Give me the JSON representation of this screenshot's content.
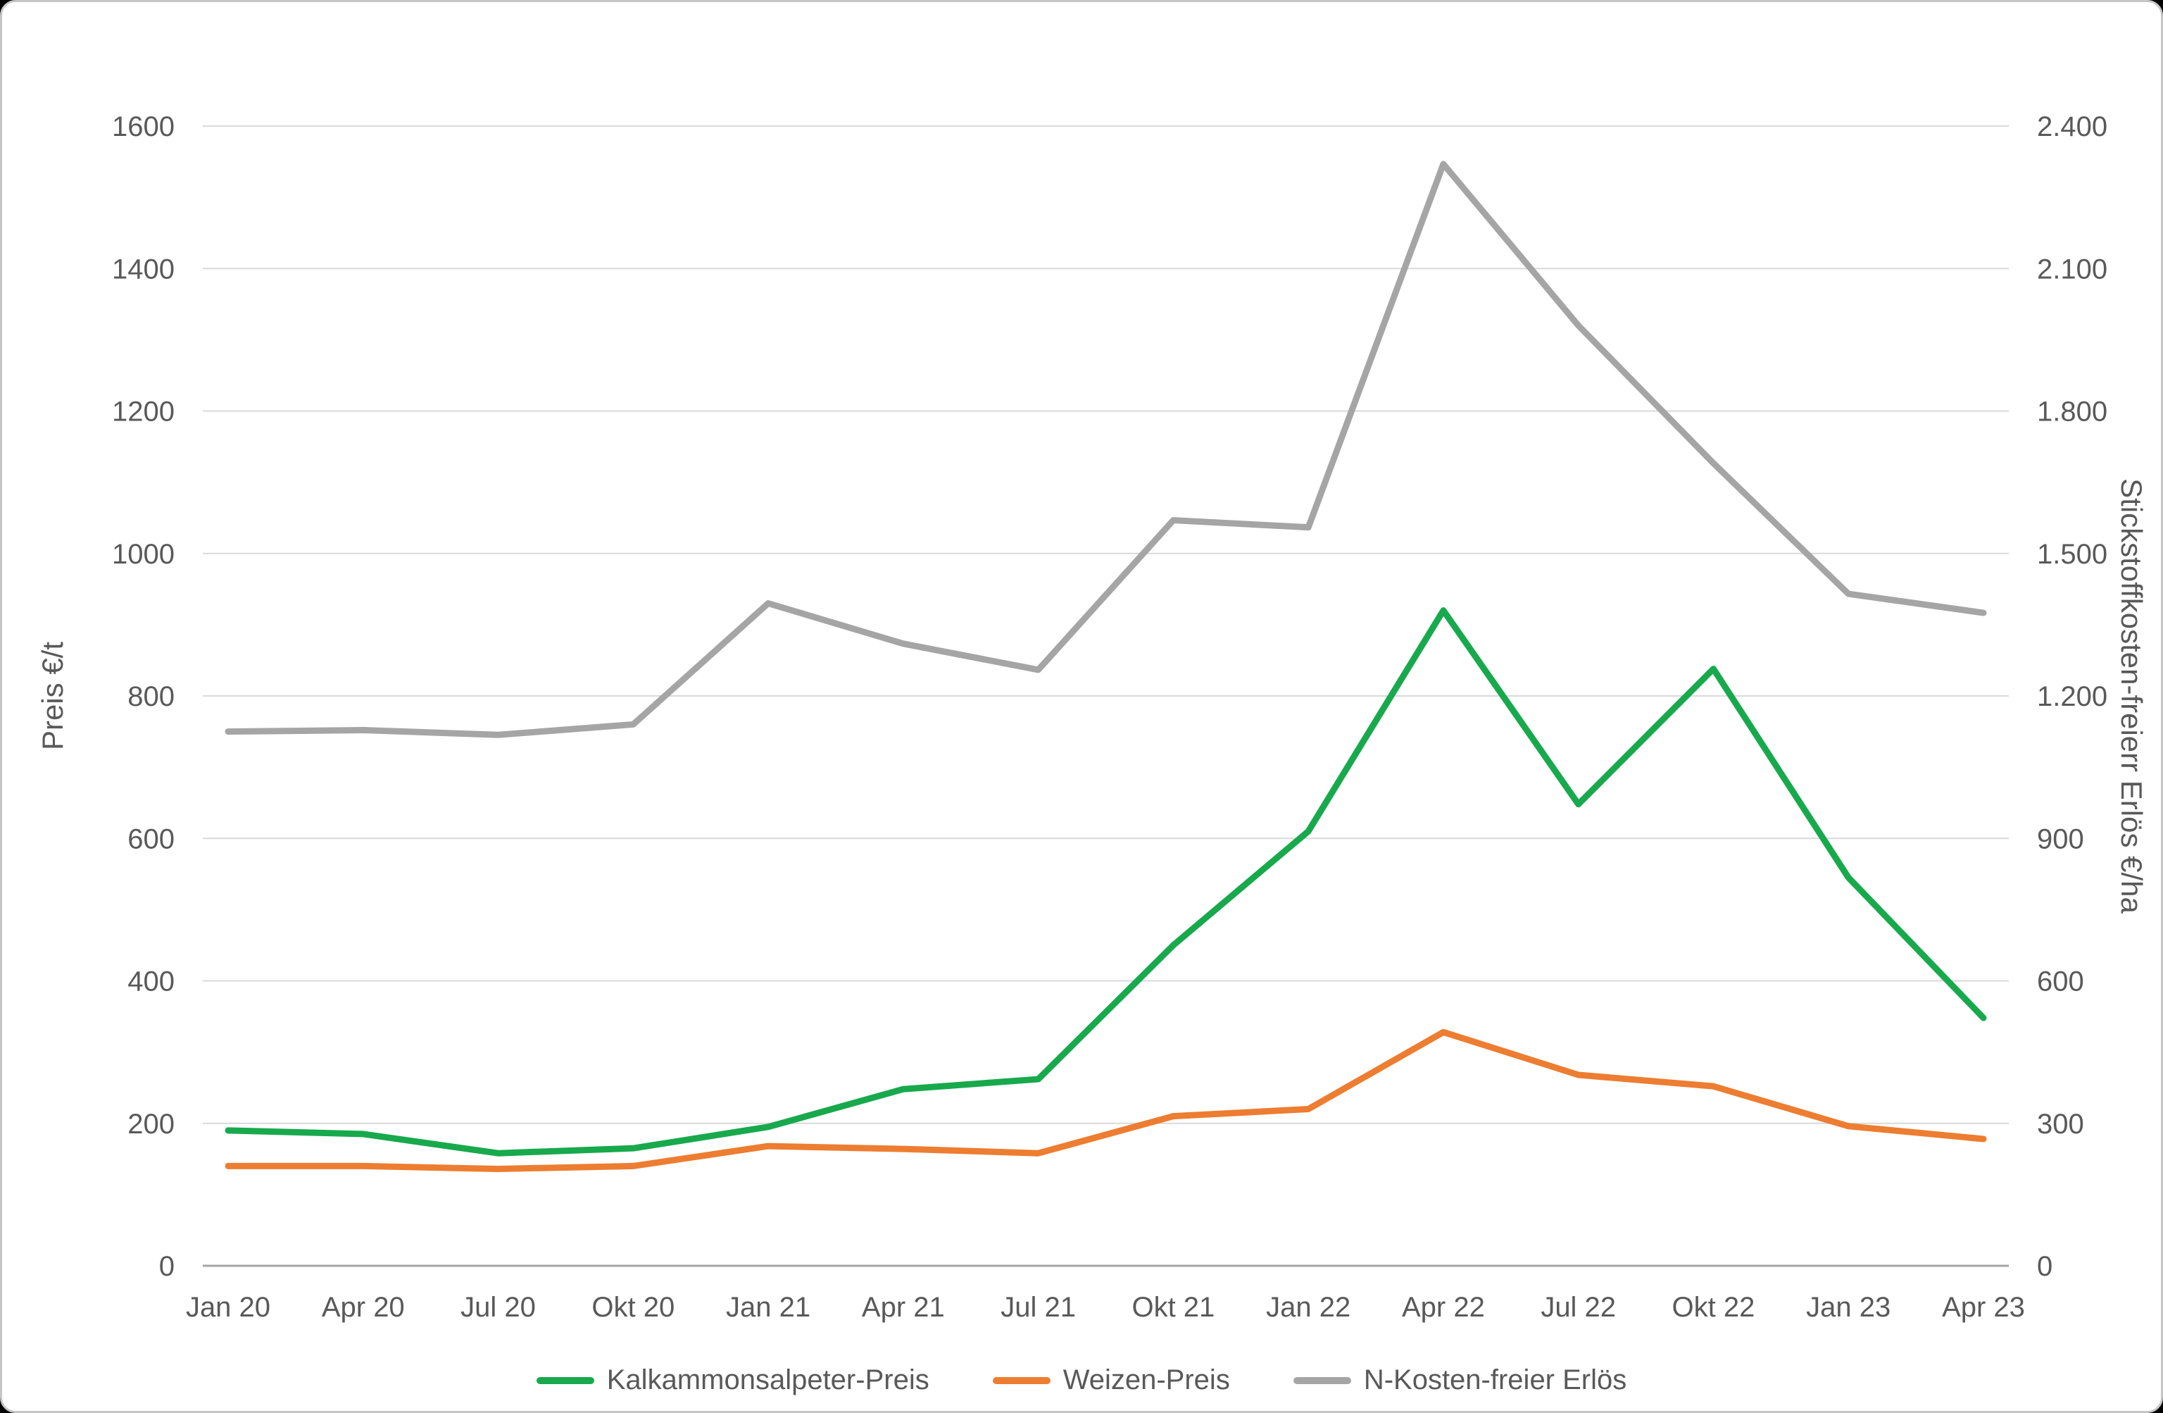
{
  "chart_data": {
    "type": "line",
    "title": "",
    "categories": [
      "Jan 20",
      "Apr 20",
      "Jul 20",
      "Okt 20",
      "Jan 21",
      "Apr 21",
      "Jul 21",
      "Okt 21",
      "Jan 22",
      "Apr 22",
      "Jul 22",
      "Okt 22",
      "Jan 23",
      "Apr 23"
    ],
    "left_axis": {
      "label": "Preis €/t",
      "min": 0,
      "max": 1600,
      "tick_labels": [
        "0",
        "200",
        "400",
        "600",
        "800",
        "1000",
        "1200",
        "1400",
        "1600"
      ]
    },
    "right_axis": {
      "label": "Stickstoffkosten-freierr Erlös €/ha",
      "min": 0,
      "max": 2400,
      "tick_labels": [
        "0",
        "300",
        "600",
        "900",
        "1.200",
        "1.500",
        "1.800",
        "2.100",
        "2.400"
      ]
    },
    "grid": true,
    "legend_position": "bottom",
    "series": [
      {
        "name": "Kalkammonsalpeter-Preis",
        "axis": "left",
        "color": "#18a94d",
        "values": [
          190,
          185,
          158,
          165,
          195,
          248,
          262,
          450,
          610,
          920,
          648,
          838,
          545,
          348
        ]
      },
      {
        "name": "Weizen-Preis",
        "axis": "left",
        "color": "#ed7d31",
        "values": [
          140,
          140,
          136,
          140,
          168,
          164,
          158,
          210,
          220,
          328,
          268,
          252,
          196,
          178
        ]
      },
      {
        "name": "N-Kosten-freier Erlös",
        "axis": "right",
        "color": "#a5a5a5",
        "values": [
          1125,
          1128,
          1118,
          1140,
          1395,
          1310,
          1255,
          1570,
          1555,
          2320,
          1980,
          1690,
          1415,
          1375
        ]
      }
    ]
  }
}
